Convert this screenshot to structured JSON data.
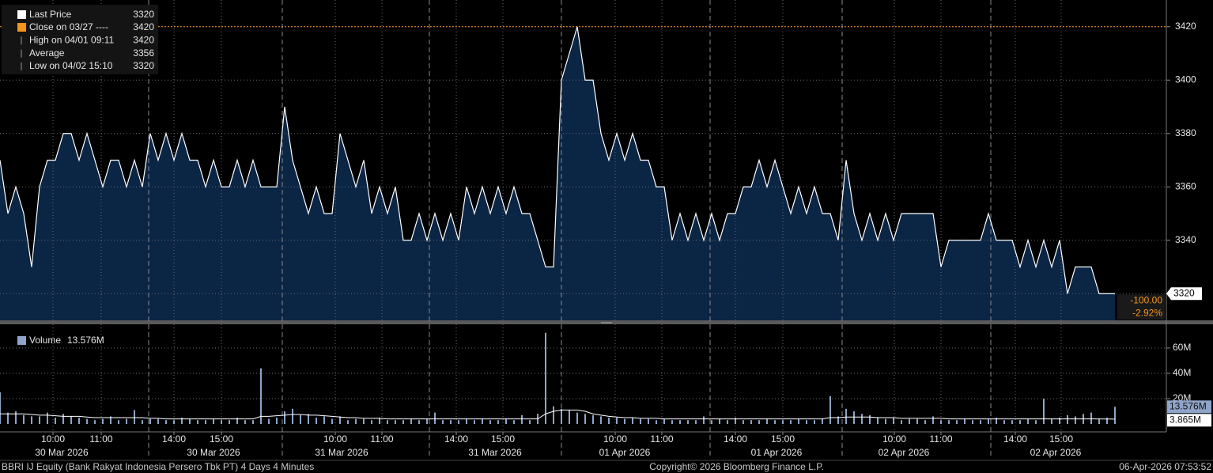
{
  "chart_data": [
    {
      "type": "area",
      "series": [
        {
          "name": "Last Price",
          "color": "#ffffff",
          "values": [
            3370,
            3350,
            3360,
            3350,
            3330,
            3360,
            3370,
            3370,
            3380,
            3380,
            3370,
            3380,
            3370,
            3360,
            3370,
            3370,
            3360,
            3370,
            3360,
            3380,
            3370,
            3380,
            3370,
            3380,
            3370,
            3370,
            3360,
            3370,
            3360,
            3360,
            3370,
            3360,
            3370,
            3360,
            3360,
            3360,
            3390,
            3370,
            3360,
            3350,
            3360,
            3350,
            3350,
            3380,
            3370,
            3360,
            3370,
            3350,
            3360,
            3350,
            3360,
            3340,
            3340,
            3350,
            3340,
            3350,
            3340,
            3350,
            3340,
            3360,
            3350,
            3360,
            3350,
            3360,
            3350,
            3360,
            3350,
            3350,
            3340,
            3330,
            3330,
            3400,
            3410,
            3420,
            3400,
            3400,
            3380,
            3370,
            3380,
            3370,
            3380,
            3370,
            3370,
            3360,
            3360,
            3340,
            3350,
            3340,
            3350,
            3340,
            3350,
            3340,
            3350,
            3350,
            3360,
            3360,
            3370,
            3360,
            3370,
            3360,
            3350,
            3360,
            3350,
            3360,
            3350,
            3350,
            3340,
            3370,
            3350,
            3340,
            3350,
            3340,
            3350,
            3340,
            3350,
            3350,
            3350,
            3350,
            3350,
            3330,
            3340,
            3340,
            3340,
            3340,
            3340,
            3350,
            3340,
            3340,
            3340,
            3330,
            3340,
            3330,
            3340,
            3330,
            3340,
            3320,
            3330,
            3330,
            3330,
            3320,
            3320,
            3320
          ]
        }
      ],
      "stats": [
        {
          "label": "Close on 03/27 ----",
          "value": 3420,
          "color": "#f7941d"
        },
        {
          "label": "High on 04/01 09:11",
          "value": 3420
        },
        {
          "label": "Average",
          "value": 3356
        },
        {
          "label": "Low on 04/02 15:10",
          "value": 3320
        }
      ],
      "fill": "#0b2545",
      "change": {
        "value": -100,
        "label": "-100.00"
      },
      "change_pct": {
        "value": -2.92,
        "label": "-2.92%"
      },
      "xlim": [
        0,
        147.5
      ],
      "ylim": [
        3310,
        3430
      ],
      "yticks": [
        3320,
        3340,
        3360,
        3380,
        3400,
        3420
      ],
      "grid": true
    },
    {
      "type": "bar",
      "series": [
        {
          "name": "Volume",
          "color": "#8ea4c8",
          "values": [
            25,
            9,
            10,
            7,
            6,
            6,
            9,
            5,
            8,
            6,
            5,
            4,
            3,
            4,
            6,
            3,
            4,
            11,
            3,
            4,
            4,
            3,
            3,
            5,
            4,
            3,
            3,
            4,
            3,
            3,
            5,
            3,
            3,
            44,
            4,
            5,
            10,
            12,
            7,
            8,
            5,
            6,
            4,
            6,
            3,
            4,
            4,
            3,
            5,
            3,
            3,
            3,
            4,
            3,
            4,
            9,
            3,
            3,
            3,
            4,
            3,
            4,
            3,
            3,
            4,
            3,
            7,
            3,
            8,
            72,
            14,
            12,
            11,
            9,
            8,
            7,
            6,
            5,
            5,
            4,
            5,
            4,
            4,
            3,
            4,
            3,
            3,
            3,
            3,
            6,
            3,
            4,
            3,
            5,
            3,
            3,
            3,
            4,
            3,
            3,
            3,
            4,
            3,
            3,
            4,
            22,
            6,
            12,
            10,
            8,
            7,
            5,
            4,
            5,
            3,
            4,
            4,
            3,
            6,
            3,
            3,
            3,
            4,
            3,
            3,
            4,
            5,
            3,
            3,
            3,
            4,
            3,
            20,
            4,
            5,
            7,
            6,
            8,
            9,
            4,
            5,
            13.576
          ]
        }
      ],
      "last_label": {
        "value": 13.576,
        "label": "13.576M"
      },
      "ma": {
        "color": "#ffffff",
        "values": [
          8,
          8,
          8,
          8,
          7.5,
          7,
          7,
          6.5,
          6,
          6,
          6,
          5.5,
          5,
          5,
          5,
          5,
          5,
          5,
          5,
          4.5,
          4.5,
          4,
          4,
          4,
          4,
          4,
          4,
          4,
          4,
          4,
          4,
          4,
          4,
          6,
          6,
          6.5,
          7,
          7.5,
          7.5,
          7,
          7,
          6.5,
          6,
          5.5,
          5,
          5,
          4.5,
          4.5,
          4.5,
          4,
          4,
          4,
          4,
          4,
          4,
          4,
          4,
          4,
          4,
          4,
          4,
          4,
          4,
          4,
          4,
          4,
          4,
          4,
          4,
          8,
          10,
          11,
          11,
          11,
          10,
          8,
          7,
          6,
          5.5,
          5,
          5,
          4.5,
          4.5,
          4.5,
          4,
          4,
          4,
          4,
          4,
          4,
          4,
          4,
          4,
          4,
          4,
          4,
          4,
          4,
          4,
          4,
          4,
          4,
          4,
          4,
          4,
          5,
          5,
          5.5,
          5.5,
          5.5,
          5.5,
          5,
          5,
          5,
          4.5,
          4.5,
          4.5,
          4.5,
          4.5,
          4.5,
          4,
          4,
          4,
          4,
          4,
          4,
          4,
          4,
          4,
          4,
          4,
          4,
          4,
          4,
          4,
          4,
          4,
          4,
          4,
          4,
          3.9,
          3.865
        ],
        "last_label": {
          "value": 3.865,
          "label": "3.865M"
        }
      },
      "xlim": [
        0,
        147.5
      ],
      "ylim": [
        -5.6,
        75.6
      ],
      "yticks": [
        {
          "value": 20,
          "label": "20M"
        },
        {
          "value": 40,
          "label": "40M"
        },
        {
          "value": 60,
          "label": "60M"
        }
      ],
      "xticks": [
        {
          "value": 6.7,
          "label": "10:00"
        },
        {
          "value": 12.8,
          "label": "11:00"
        },
        {
          "value": 22,
          "label": "14:00"
        },
        {
          "value": 28,
          "label": "15:00"
        },
        {
          "value": 42.4,
          "label": "10:00"
        },
        {
          "value": 48.3,
          "label": "11:00"
        },
        {
          "value": 57.7,
          "label": "14:00"
        },
        {
          "value": 63.6,
          "label": "15:00"
        },
        {
          "value": 77.8,
          "label": "10:00"
        },
        {
          "value": 83.7,
          "label": "11:00"
        },
        {
          "value": 93,
          "label": "14:00"
        },
        {
          "value": 99,
          "label": "15:00"
        },
        {
          "value": 113.1,
          "label": "10:00"
        },
        {
          "value": 119,
          "label": "11:00"
        },
        {
          "value": 128.4,
          "label": "14:00"
        },
        {
          "value": 134.2,
          "label": "15:00"
        }
      ],
      "xticks_dates": [
        {
          "value": 7.8,
          "label": "30 Mar 2026"
        },
        {
          "value": 27,
          "label": "30 Mar 2026"
        },
        {
          "value": 43.2,
          "label": "31 Mar 2026"
        },
        {
          "value": 62.6,
          "label": "31 Mar 2026"
        },
        {
          "value": 79,
          "label": "01 Apr 2026"
        },
        {
          "value": 98.2,
          "label": "01 Apr 2026"
        },
        {
          "value": 114.3,
          "label": "02 Apr 2026"
        },
        {
          "value": 133.5,
          "label": "02 Apr 2026"
        }
      ],
      "session_breaks": [
        18.8,
        35.7,
        54.3,
        71,
        89.8,
        106.5,
        125.3
      ],
      "grid": true
    }
  ],
  "footer": {
    "left": "BBRI IJ Equity (Bank Rakyat Indonesia Persero Tbk PT) 4 Days 4 Minutes",
    "center": "Copyright© 2026 Bloomberg Finance L.P.",
    "right": "06-Apr-2026 07:53:52"
  }
}
